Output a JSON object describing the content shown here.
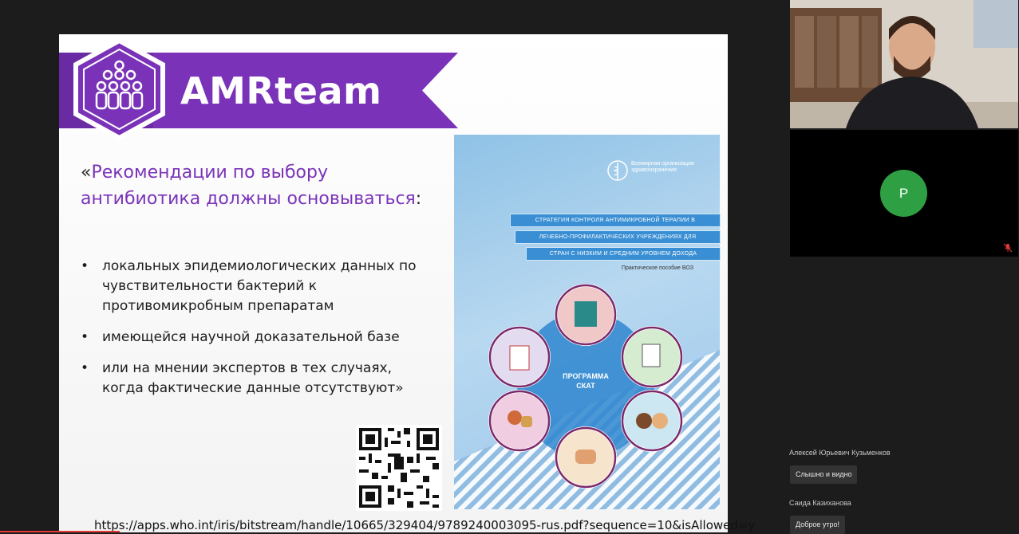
{
  "slide": {
    "brand": "AMRteam",
    "quote": {
      "open": "«",
      "text": "Рекомендации по выбору антибиотика должны основываться",
      "colon": ":"
    },
    "bullets": [
      "локальных эпидемиологических данных по чувствительности бактерий к противомикробным препаратам",
      "имеющейся научной доказательной базе",
      "или на мнении экспертов в тех случаях, когда фактические данные отсутствуют»"
    ],
    "url": "https://apps.who.int/iris/bitstream/handle/10665/329404/9789240003095-rus.pdf?sequence=10&isAllowed=y",
    "cover": {
      "org": "Всемирная организация здравоохранения",
      "bands": [
        "СТРАТЕГИЯ КОНТРОЛЯ АНТИМИКРОБНОЙ ТЕРАПИИ В",
        "ЛЕЧЕБНО-ПРОФИЛАКТИЧЕСКИХ УЧРЕЖДЕНИЯХ ДЛЯ",
        "СТРАН С НИЗКИМ И СРЕДНИМ УРОВНЕМ ДОХОДА"
      ],
      "subtitle": "Практическое пособие ВОЗ",
      "program_line1": "ПРОГРАММА",
      "program_line2": "СКАТ"
    }
  },
  "participants": {
    "p_initial": "P",
    "accent": "#2ea043"
  },
  "chat": [
    {
      "name": "Алексей Юрьевич Кузьменков",
      "message": "Слышно и видно"
    },
    {
      "name": "Саида Казиханова",
      "message": "Доброе утро!"
    }
  ],
  "colors": {
    "brand_purple": "#7a33b8",
    "background": "#1c1c1c"
  }
}
